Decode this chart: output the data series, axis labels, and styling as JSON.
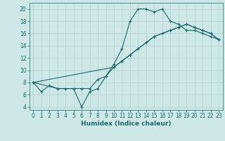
{
  "xlabel": "Humidex (Indice chaleur)",
  "ylabel": "",
  "xlim": [
    -0.5,
    23.5
  ],
  "ylim": [
    3.5,
    21
  ],
  "yticks": [
    4,
    6,
    8,
    10,
    12,
    14,
    16,
    18,
    20
  ],
  "xticks": [
    0,
    1,
    2,
    3,
    4,
    5,
    6,
    7,
    8,
    9,
    10,
    11,
    12,
    13,
    14,
    15,
    16,
    17,
    18,
    19,
    20,
    21,
    22,
    23
  ],
  "bg_color": "#cde8e6",
  "grid_color": "#aecfcd",
  "line_color": "#1a6b6b",
  "line_width": 0.8,
  "marker": "+",
  "marker_size": 3,
  "marker_lw": 0.8,
  "tick_fontsize": 5.5,
  "xlabel_fontsize": 6.5,
  "lines": [
    {
      "x": [
        0,
        1,
        2,
        3,
        4,
        5,
        6,
        7,
        8,
        9,
        10,
        11,
        12,
        13,
        14,
        15,
        16,
        17,
        18,
        19,
        20,
        21,
        22,
        23
      ],
      "y": [
        8,
        6.5,
        7.5,
        7,
        7,
        7,
        4,
        6.5,
        7,
        9,
        11,
        13.5,
        18,
        20,
        20,
        19.5,
        20,
        18,
        17.5,
        16.5,
        16.5,
        16,
        15.5,
        15
      ]
    },
    {
      "x": [
        0,
        3,
        5,
        6,
        7,
        8,
        9,
        10,
        11,
        12,
        13,
        14,
        15,
        16,
        17,
        18,
        19,
        20,
        21,
        22,
        23
      ],
      "y": [
        8,
        7,
        7,
        7,
        7,
        8.5,
        9,
        10.5,
        11.5,
        12.5,
        13.5,
        14.5,
        15.5,
        16,
        16.5,
        17,
        17.5,
        17,
        16.5,
        16,
        15
      ]
    },
    {
      "x": [
        0,
        10,
        11,
        12,
        13,
        14,
        15,
        16,
        17,
        18,
        19,
        20,
        21,
        22,
        23
      ],
      "y": [
        8,
        10.5,
        11.5,
        12.5,
        13.5,
        14.5,
        15.5,
        16,
        16.5,
        17,
        17.5,
        17,
        16.5,
        16,
        15
      ]
    }
  ]
}
